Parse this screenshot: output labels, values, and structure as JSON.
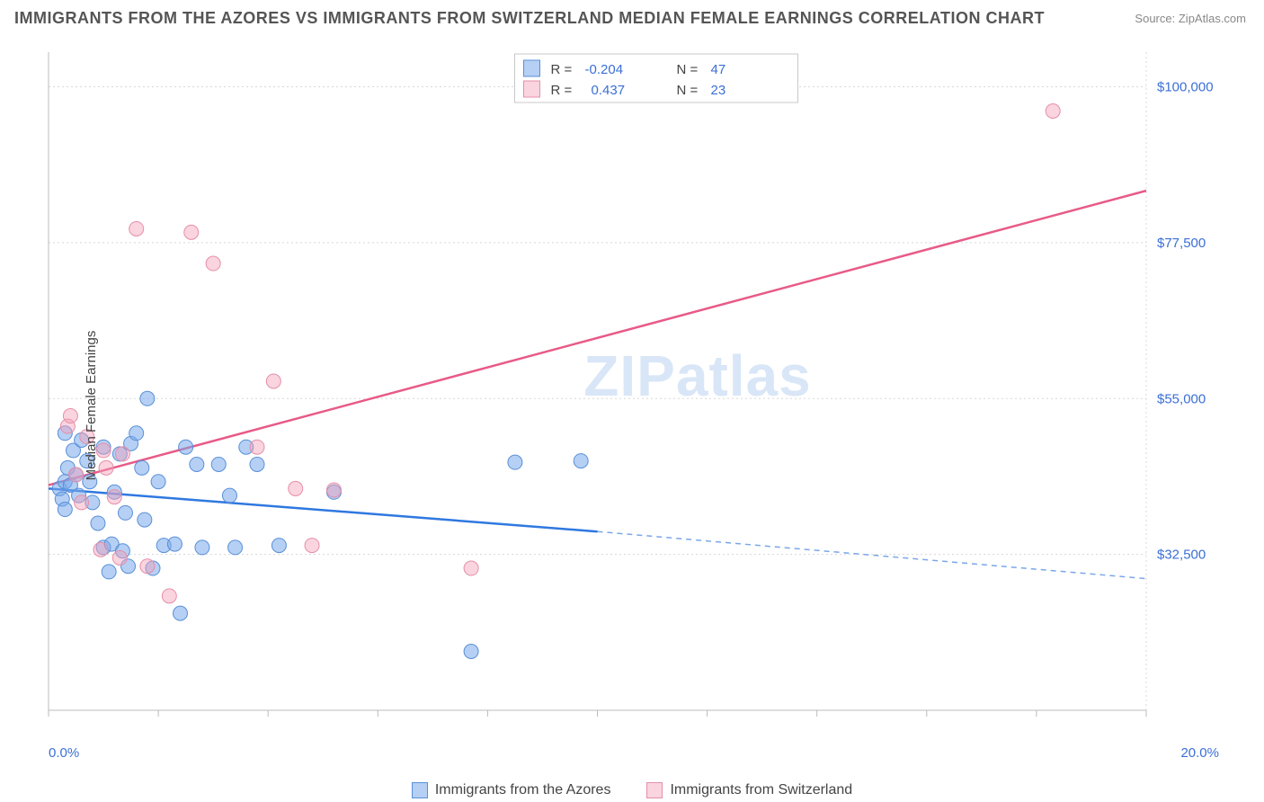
{
  "header": {
    "title": "IMMIGRANTS FROM THE AZORES VS IMMIGRANTS FROM SWITZERLAND MEDIAN FEMALE EARNINGS CORRELATION CHART",
    "source_label": "Source:",
    "source_name": "ZipAtlas.com"
  },
  "chart": {
    "type": "scatter",
    "watermark": "ZIPatlas",
    "ylabel": "Median Female Earnings",
    "xlim": [
      0,
      20
    ],
    "ylim": [
      10000,
      105000
    ],
    "x_tick_positions": [
      0,
      2,
      4,
      6,
      8,
      10,
      12,
      14,
      16,
      18,
      20
    ],
    "x_label_min": "0.0%",
    "x_label_max": "20.0%",
    "y_gridlines": [
      32500,
      55000,
      77500,
      100000
    ],
    "y_gridline_labels": [
      "$32,500",
      "$55,000",
      "$77,500",
      "$100,000"
    ],
    "background_color": "#ffffff",
    "grid_color": "#d8d8d8",
    "axis_color": "#bbbbbb",
    "tick_label_color": "#3b6fd6",
    "series": [
      {
        "name": "Immigrants from the Azores",
        "color_fill": "rgba(120,170,235,0.55)",
        "color_stroke": "#5a8fd8",
        "trend_color": "#2f78e0",
        "stats": {
          "R": "-0.204",
          "N": "47"
        },
        "trend": {
          "x1": 0,
          "y1": 42000,
          "x2": 10,
          "y2": 35800,
          "x2_dash": 20,
          "y2_dash": 29000
        },
        "marker_radius": 8,
        "points": [
          [
            0.2,
            42000
          ],
          [
            0.3,
            43000
          ],
          [
            0.25,
            40500
          ],
          [
            0.3,
            39000
          ],
          [
            0.4,
            42500
          ],
          [
            0.35,
            45000
          ],
          [
            0.3,
            50000
          ],
          [
            0.45,
            47500
          ],
          [
            0.5,
            44000
          ],
          [
            0.55,
            41000
          ],
          [
            0.6,
            49000
          ],
          [
            0.7,
            46000
          ],
          [
            0.75,
            43000
          ],
          [
            0.8,
            40000
          ],
          [
            0.9,
            37000
          ],
          [
            1.0,
            48000
          ],
          [
            1.0,
            33500
          ],
          [
            1.1,
            30000
          ],
          [
            1.15,
            34000
          ],
          [
            1.2,
            41500
          ],
          [
            1.3,
            47000
          ],
          [
            1.35,
            33000
          ],
          [
            1.4,
            38500
          ],
          [
            1.45,
            30800
          ],
          [
            1.5,
            48500
          ],
          [
            1.6,
            50000
          ],
          [
            1.7,
            45000
          ],
          [
            1.75,
            37500
          ],
          [
            1.8,
            55000
          ],
          [
            1.9,
            30500
          ],
          [
            2.0,
            43000
          ],
          [
            2.1,
            33800
          ],
          [
            2.3,
            34000
          ],
          [
            2.4,
            24000
          ],
          [
            2.5,
            48000
          ],
          [
            2.7,
            45500
          ],
          [
            2.8,
            33500
          ],
          [
            3.1,
            45500
          ],
          [
            3.3,
            41000
          ],
          [
            3.4,
            33500
          ],
          [
            3.6,
            48000
          ],
          [
            3.8,
            45500
          ],
          [
            4.2,
            33800
          ],
          [
            7.7,
            18500
          ],
          [
            8.5,
            45800
          ],
          [
            9.7,
            46000
          ],
          [
            5.2,
            41500
          ]
        ]
      },
      {
        "name": "Immigrants from Switzerland",
        "color_fill": "rgba(245,160,185,0.45)",
        "color_stroke": "#e58fa8",
        "trend_color": "#e85a87",
        "stats": {
          "R": "0.437",
          "N": "23"
        },
        "trend": {
          "x1": 0,
          "y1": 42500,
          "x2": 20,
          "y2": 85000
        },
        "marker_radius": 8,
        "points": [
          [
            0.35,
            51000
          ],
          [
            0.4,
            52500
          ],
          [
            0.5,
            44000
          ],
          [
            0.6,
            40000
          ],
          [
            0.7,
            49500
          ],
          [
            0.95,
            33200
          ],
          [
            1.0,
            47500
          ],
          [
            1.05,
            45000
          ],
          [
            1.2,
            40800
          ],
          [
            1.35,
            47000
          ],
          [
            1.3,
            32000
          ],
          [
            1.6,
            79500
          ],
          [
            1.8,
            30800
          ],
          [
            2.2,
            26500
          ],
          [
            2.6,
            79000
          ],
          [
            3.0,
            74500
          ],
          [
            3.8,
            48000
          ],
          [
            4.1,
            57500
          ],
          [
            4.5,
            42000
          ],
          [
            4.8,
            33800
          ],
          [
            5.2,
            41800
          ],
          [
            7.7,
            30500
          ],
          [
            18.3,
            96500
          ]
        ]
      }
    ],
    "legend": {
      "series1": "Immigrants from the Azores",
      "series2": "Immigrants from Switzerland"
    },
    "stats_labels": {
      "R": "R =",
      "N": "N ="
    }
  }
}
